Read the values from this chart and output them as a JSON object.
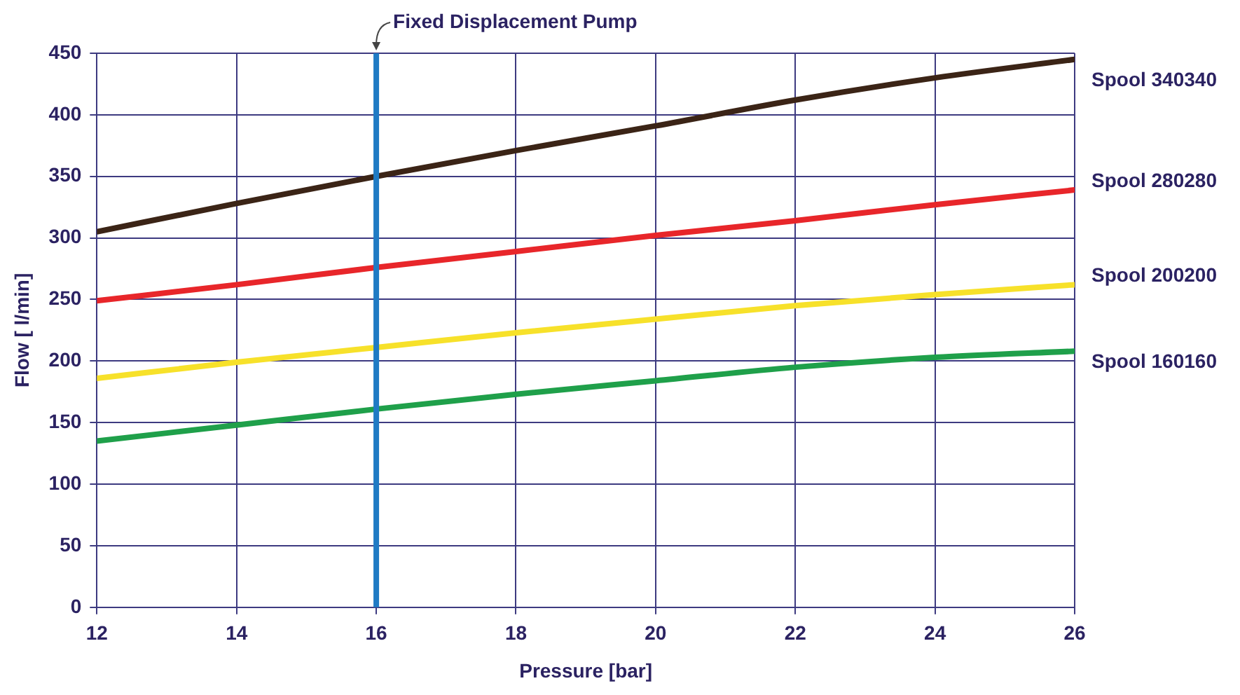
{
  "chart_data": {
    "type": "line",
    "xlabel": "Pressure [bar]",
    "ylabel": "Flow [ l/min]",
    "x": [
      12,
      14,
      16,
      18,
      20,
      22,
      24,
      26
    ],
    "series": [
      {
        "name": "Spool 340340",
        "color": "#3b2416",
        "values": [
          305,
          328,
          350,
          371,
          391,
          412,
          430,
          445
        ]
      },
      {
        "name": "Spool 280280",
        "color": "#e8262a",
        "values": [
          249,
          262,
          276,
          289,
          302,
          314,
          327,
          339
        ]
      },
      {
        "name": "Spool 200200",
        "color": "#f7e12a",
        "values": [
          186,
          199,
          211,
          223,
          234,
          245,
          254,
          262
        ]
      },
      {
        "name": "Spool 160160",
        "color": "#1fa04a",
        "values": [
          135,
          148,
          161,
          173,
          184,
          195,
          203,
          208
        ]
      }
    ],
    "xlim": [
      12,
      26
    ],
    "xticks": [
      12,
      14,
      16,
      18,
      20,
      22,
      24,
      26
    ],
    "ylim": [
      0,
      450
    ],
    "yticks": [
      0,
      50,
      100,
      150,
      200,
      250,
      300,
      350,
      400,
      450
    ],
    "grid": true,
    "legend": false,
    "marker": "none",
    "line_style": "solid",
    "ref_lines": [
      {
        "axis": "x",
        "value": 16,
        "label": "Fixed Displacement Pump",
        "color": "#1f7bc4"
      }
    ]
  }
}
